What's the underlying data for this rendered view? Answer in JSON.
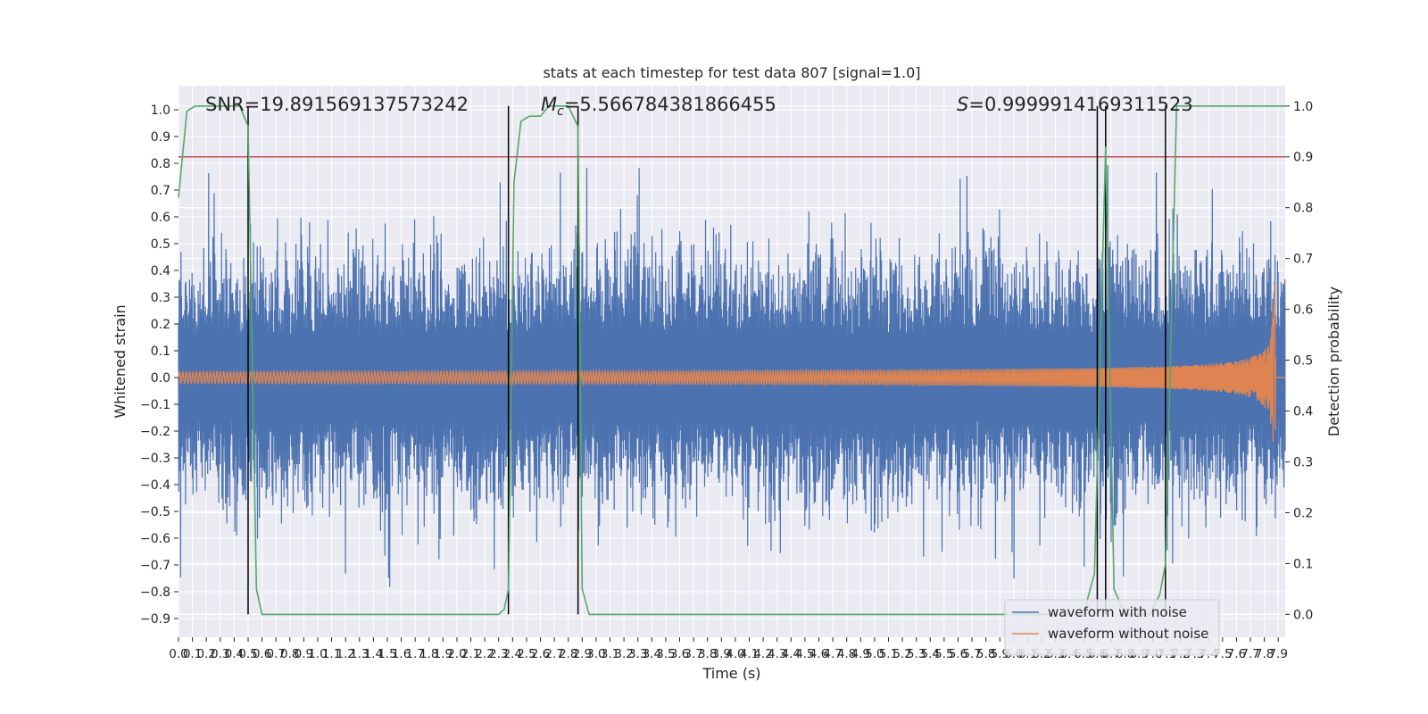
{
  "chart_data": {
    "type": "line",
    "title": "stats at each timestep for test data 807 [signal=1.0]",
    "xlabel": "Time (s)",
    "ylabel": "Whitened strain",
    "y2label": "Detection probability",
    "xlim": [
      0.0,
      7.95
    ],
    "ylim": [
      -0.97,
      1.09
    ],
    "y2lim": [
      -0.045,
      1.04
    ],
    "x_ticks": [
      "0.0",
      "0.1",
      "0.2",
      "0.3",
      "0.4",
      "0.5",
      "0.6",
      "0.7",
      "0.8",
      "0.9",
      "1.0",
      "1.1",
      "1.2",
      "1.3",
      "1.4",
      "1.5",
      "1.6",
      "1.7",
      "1.8",
      "1.9",
      "2.0",
      "2.1",
      "2.2",
      "2.3",
      "2.4",
      "2.5",
      "2.6",
      "2.7",
      "2.8",
      "2.9",
      "3.0",
      "3.1",
      "3.2",
      "3.3",
      "3.4",
      "3.5",
      "3.6",
      "3.7",
      "3.8",
      "3.9",
      "4.0",
      "4.1",
      "4.2",
      "4.3",
      "4.4",
      "4.5",
      "4.6",
      "4.7",
      "4.8",
      "4.9",
      "5.0",
      "5.1",
      "5.2",
      "5.3",
      "5.4",
      "5.5",
      "5.6",
      "5.7",
      "5.8",
      "5.9",
      "6.0",
      "6.1",
      "6.2",
      "6.3",
      "6.4",
      "6.5",
      "6.6",
      "6.7",
      "6.8",
      "6.9",
      "7.0",
      "7.1",
      "7.2",
      "7.3",
      "7.4",
      "7.5",
      "7.6",
      "7.7",
      "7.8",
      "7.9"
    ],
    "y_ticks": [
      "1.0",
      "0.9",
      "0.8",
      "0.7",
      "0.6",
      "0.5",
      "0.4",
      "0.3",
      "0.2",
      "0.1",
      "0.0",
      "−0.1",
      "−0.2",
      "−0.3",
      "−0.4",
      "−0.5",
      "−0.6",
      "−0.7",
      "−0.8",
      "−0.9"
    ],
    "y2_ticks": [
      "1.0",
      "0.9",
      "0.8",
      "0.7",
      "0.6",
      "0.5",
      "0.4",
      "0.3",
      "0.2",
      "0.1",
      "0.0"
    ],
    "annotations": {
      "snr": "SNR=19.891569137573242",
      "mc_symbol": "M",
      "mc_subscript": "c",
      "mc_value": "=5.566784381866455",
      "s_symbol": "S",
      "s_value": "=0.9999914169311523"
    },
    "threshold_y2": 0.9,
    "vertical_lines_x": [
      0.5,
      2.37,
      2.87,
      6.6,
      6.66,
      7.09
    ],
    "series": [
      {
        "name": "waveform with noise",
        "color": "#4c72b0",
        "axis": "left",
        "description_range": [
          -0.87,
          1.0
        ]
      },
      {
        "name": "waveform without noise",
        "color": "#dd8452",
        "axis": "left"
      },
      {
        "color": "#55a868",
        "axis": "right",
        "x": [
          0.0,
          0.06,
          0.12,
          0.2,
          0.3,
          0.44,
          0.5,
          0.56,
          0.6,
          0.7,
          1.0,
          1.5,
          2.0,
          2.2,
          2.3,
          2.34,
          2.37,
          2.41,
          2.46,
          2.52,
          2.6,
          2.66,
          2.72,
          2.8,
          2.87,
          2.9,
          2.95,
          3.0,
          3.5,
          4.0,
          5.0,
          6.0,
          6.4,
          6.5,
          6.58,
          6.66,
          6.72,
          6.8,
          6.9,
          6.98,
          7.05,
          7.09,
          7.17,
          7.3,
          7.6,
          7.95
        ],
        "y": [
          0.82,
          0.99,
          1.0,
          1.0,
          1.0,
          1.0,
          0.96,
          0.05,
          0.0,
          0.0,
          0.0,
          0.0,
          0.0,
          0.0,
          0.0,
          0.01,
          0.05,
          0.85,
          0.97,
          0.98,
          0.98,
          1.0,
          1.0,
          1.0,
          0.96,
          0.05,
          0.0,
          0.0,
          0.0,
          0.0,
          0.0,
          0.0,
          0.0,
          0.0,
          0.08,
          0.92,
          0.05,
          0.0,
          0.0,
          0.0,
          0.04,
          0.1,
          1.0,
          1.0,
          1.0,
          1.0
        ]
      }
    ],
    "legend_position": "lower right",
    "grid": true
  }
}
